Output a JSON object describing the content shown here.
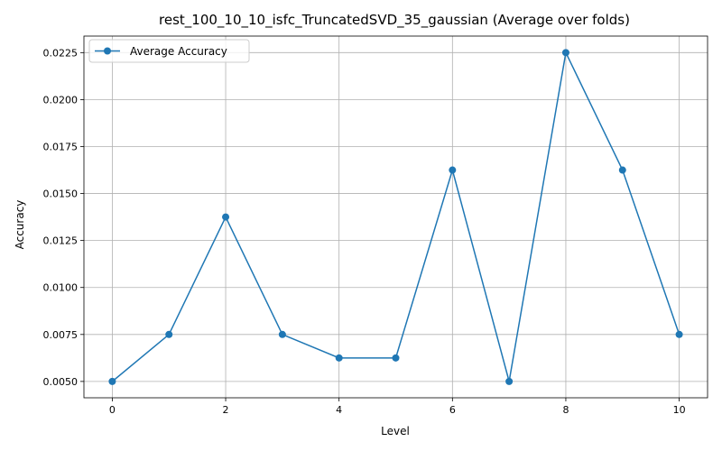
{
  "chart_data": {
    "type": "line",
    "title": "rest_100_10_10_isfc_TruncatedSVD_35_gaussian (Average over folds)",
    "xlabel": "Level",
    "ylabel": "Accuracy",
    "x": [
      0,
      1,
      2,
      3,
      4,
      5,
      6,
      7,
      8,
      9,
      10
    ],
    "series": [
      {
        "name": "Average Accuracy",
        "values": [
          0.005,
          0.0075,
          0.01375,
          0.0075,
          0.00625,
          0.00625,
          0.01625,
          0.005,
          0.0225,
          0.01625,
          0.0075
        ],
        "color": "#1f77b4",
        "marker": "circle"
      }
    ],
    "xlim": [
      -0.5,
      10.5
    ],
    "ylim": [
      0.00413,
      0.02338
    ],
    "xticks": [
      0,
      2,
      4,
      6,
      8,
      10
    ],
    "xtick_labels": [
      "0",
      "2",
      "4",
      "6",
      "8",
      "10"
    ],
    "yticks": [
      0.005,
      0.0075,
      0.01,
      0.0125,
      0.015,
      0.0175,
      0.02,
      0.0225
    ],
    "ytick_labels": [
      "0.0050",
      "0.0075",
      "0.0100",
      "0.0125",
      "0.0150",
      "0.0175",
      "0.0200",
      "0.0225"
    ],
    "grid": true,
    "legend_position": "top-left"
  }
}
